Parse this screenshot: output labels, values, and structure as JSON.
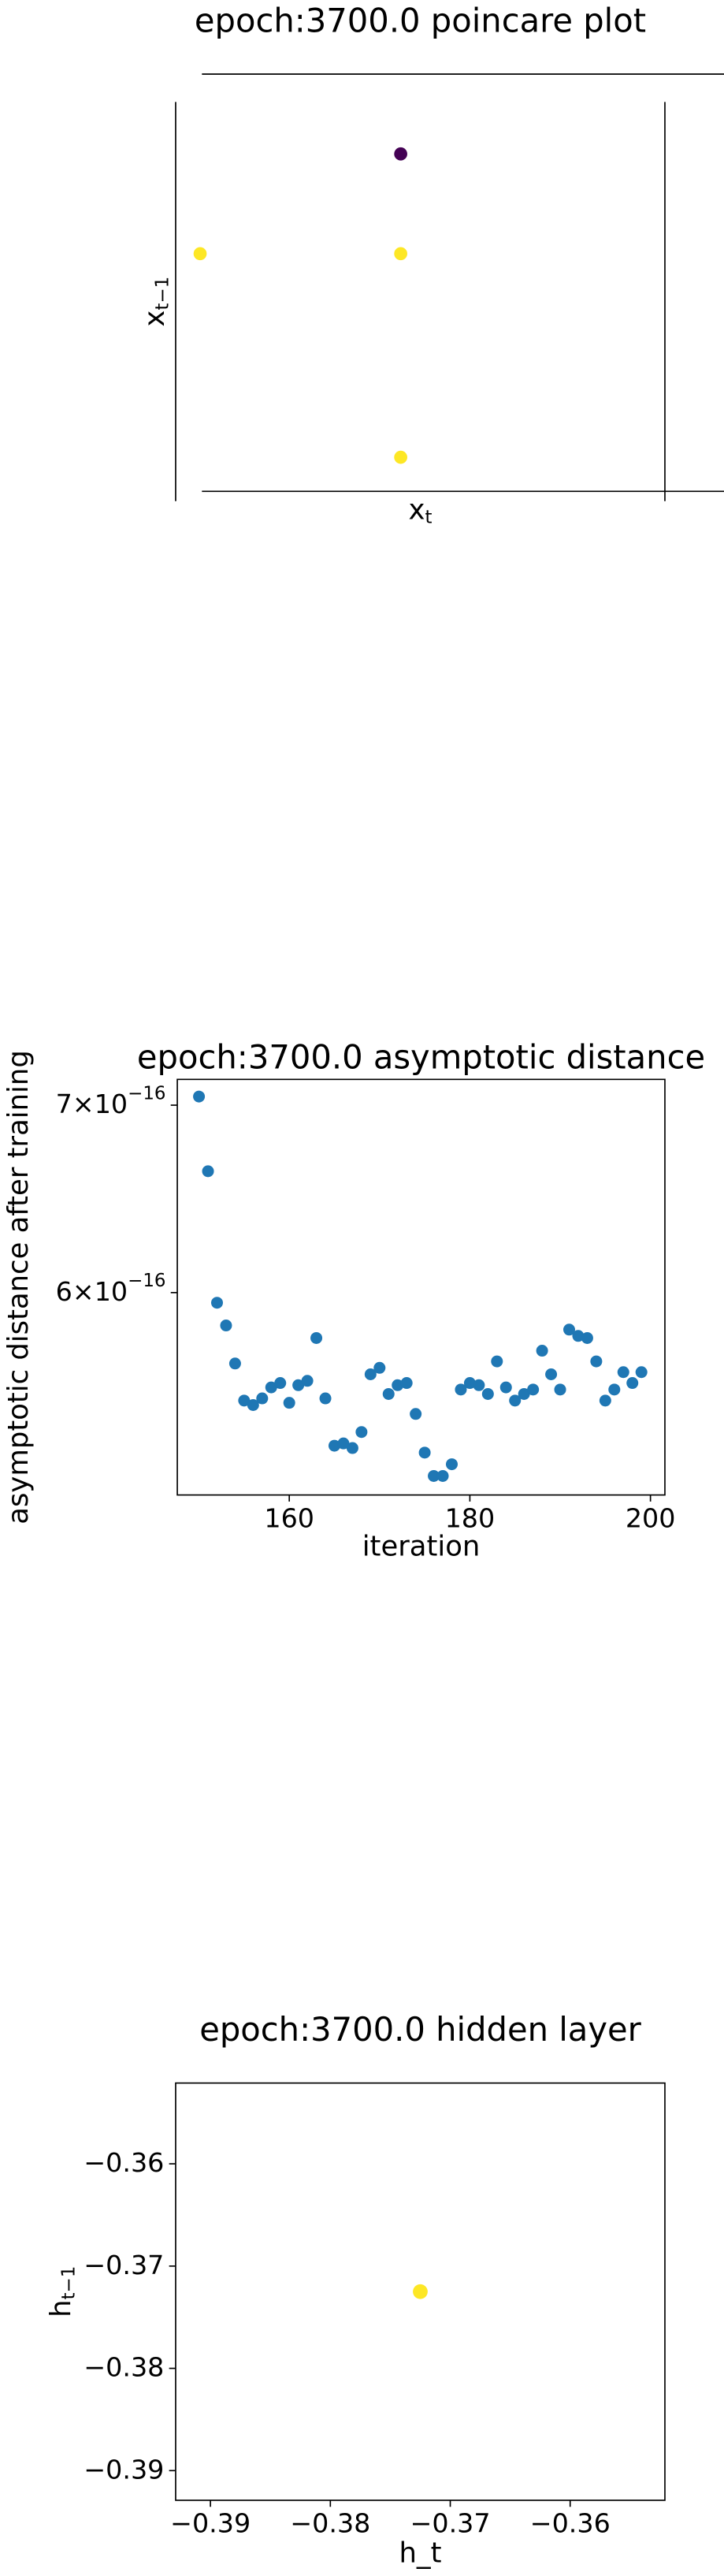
{
  "chart_data": [
    {
      "type": "scatter",
      "title": "epoch:3700.0 poincare plot",
      "xlabel": "x",
      "xlabel_subscript": "t",
      "ylabel": "x",
      "ylabel_subscript": "t−1",
      "x": [
        0.05,
        0.46,
        0.46,
        0.46
      ],
      "y": [
        0.62,
        0.87,
        0.62,
        0.11
      ],
      "colors": [
        "#fde725",
        "#440154",
        "#fde725",
        "#fde725"
      ],
      "xlim": [
        0,
        1
      ],
      "ylim": [
        0,
        1
      ]
    },
    {
      "type": "scatter",
      "title": "epoch:3700.0 asymptotic distance",
      "xlabel": "iteration",
      "ylabel": "asymptotic distance after training",
      "yscale": "log",
      "x": [
        150,
        151,
        152,
        153,
        154,
        155,
        156,
        157,
        158,
        159,
        160,
        161,
        162,
        163,
        164,
        165,
        166,
        167,
        168,
        169,
        170,
        171,
        172,
        173,
        174,
        175,
        176,
        177,
        178,
        179,
        180,
        181,
        182,
        183,
        184,
        185,
        186,
        187,
        188,
        189,
        190,
        191,
        192,
        193,
        194,
        195,
        196,
        197,
        198,
        199
      ],
      "y": [
        7.05e-16,
        6.63e-16,
        5.95e-16,
        5.84e-16,
        5.66e-16,
        5.49e-16,
        5.47e-16,
        5.5e-16,
        5.55e-16,
        5.57e-16,
        5.48e-16,
        5.56e-16,
        5.58e-16,
        5.78e-16,
        5.5e-16,
        5.29e-16,
        5.3e-16,
        5.28e-16,
        5.35e-16,
        5.61e-16,
        5.64e-16,
        5.52e-16,
        5.56e-16,
        5.57e-16,
        5.43e-16,
        5.26e-16,
        5.16e-16,
        5.16e-16,
        5.21e-16,
        5.54e-16,
        5.57e-16,
        5.56e-16,
        5.52e-16,
        5.67e-16,
        5.55e-16,
        5.49e-16,
        5.52e-16,
        5.54e-16,
        5.72e-16,
        5.61e-16,
        5.54e-16,
        5.82e-16,
        5.79e-16,
        5.78e-16,
        5.67e-16,
        5.49e-16,
        5.54e-16,
        5.62e-16,
        5.57e-16,
        5.62e-16
      ],
      "color": "#1f77b4",
      "xlim": [
        147.6,
        201.6
      ],
      "ylim": [
        5.08e-16,
        7.15e-16
      ],
      "xticks": [
        160,
        180,
        200
      ],
      "yticks": [
        {
          "value": 6e-16,
          "label": "6×10",
          "label_exponent": "−16"
        },
        {
          "value": 7e-16,
          "label": "7×10",
          "label_exponent": "−16"
        }
      ]
    },
    {
      "type": "scatter",
      "title": "epoch:3700.0 hidden layer",
      "xlabel": "h_t",
      "ylabel": "h",
      "ylabel_subscript": "t−1",
      "x": [
        -0.3725
      ],
      "y": [
        -0.3725
      ],
      "color": "#fde725",
      "xlim": [
        -0.3929,
        -0.3521
      ],
      "ylim": [
        -0.3929,
        -0.3521
      ],
      "xticks": [
        {
          "value": -0.39,
          "label": "−0.39"
        },
        {
          "value": -0.38,
          "label": "−0.38"
        },
        {
          "value": -0.37,
          "label": "−0.37"
        },
        {
          "value": -0.36,
          "label": "−0.36"
        }
      ],
      "yticks": [
        {
          "value": -0.39,
          "label": "−0.39"
        },
        {
          "value": -0.38,
          "label": "−0.38"
        },
        {
          "value": -0.37,
          "label": "−0.37"
        },
        {
          "value": -0.36,
          "label": "−0.36"
        }
      ]
    }
  ]
}
